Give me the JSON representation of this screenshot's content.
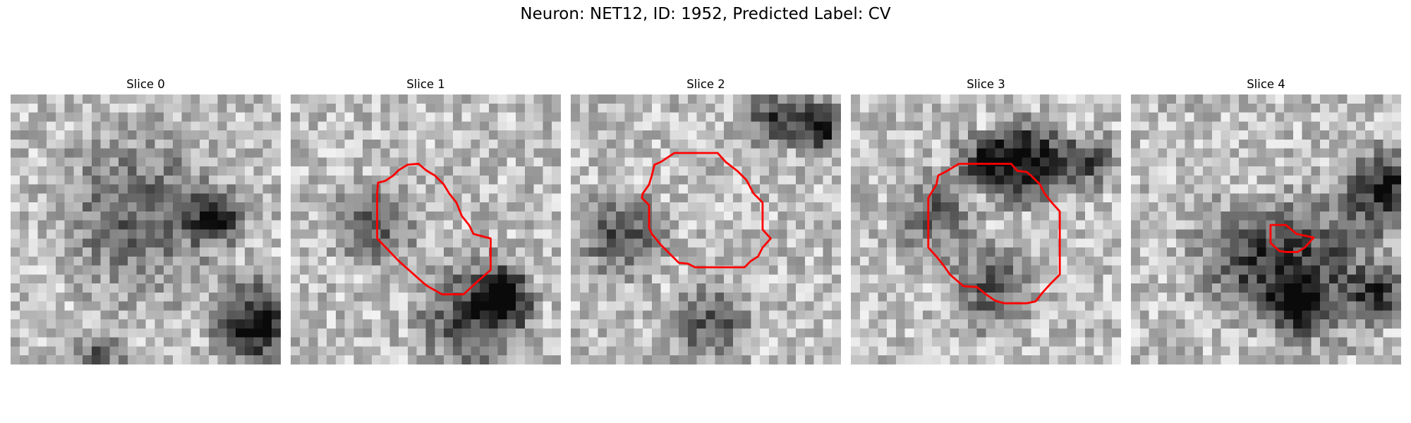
{
  "figure": {
    "title": "Neuron: NET12, ID: 1952, Predicted Label: CV"
  },
  "contour_color": "#ff0000",
  "grid": {
    "cols": 30,
    "rows": 30,
    "colormap": "grayscale"
  },
  "slices": [
    {
      "title": "Slice 0",
      "seed": 11,
      "dark_spots": [
        {
          "c": 14,
          "r": 13,
          "rad": 6,
          "k": 0.35
        },
        {
          "c": 22,
          "r": 13,
          "rad": 2,
          "k": 0.55
        },
        {
          "c": 27,
          "r": 25,
          "rad": 3,
          "k": 0.7
        },
        {
          "c": 9,
          "r": 29,
          "rad": 2,
          "k": 0.4
        }
      ],
      "contour": []
    },
    {
      "title": "Slice 1",
      "seed": 23,
      "dark_spots": [
        {
          "c": 9,
          "r": 14,
          "rad": 3,
          "k": 0.35
        },
        {
          "c": 20,
          "r": 24,
          "rad": 4,
          "k": 0.5
        },
        {
          "c": 23,
          "r": 22,
          "rad": 2,
          "k": 0.6
        }
      ],
      "contour": [
        [
          9.7,
          9.8
        ],
        [
          10.5,
          9.6
        ],
        [
          11.4,
          9.0
        ],
        [
          12.0,
          8.4
        ],
        [
          13.0,
          7.8
        ],
        [
          14.2,
          7.7
        ],
        [
          15.0,
          8.4
        ],
        [
          16.0,
          9.0
        ],
        [
          17.0,
          10.0
        ],
        [
          17.6,
          11.0
        ],
        [
          18.4,
          12.0
        ],
        [
          19.0,
          13.5
        ],
        [
          19.8,
          14.5
        ],
        [
          20.3,
          15.5
        ],
        [
          22.2,
          16.0
        ],
        [
          22.2,
          19.5
        ],
        [
          20.5,
          21.0
        ],
        [
          19.2,
          22.2
        ],
        [
          16.8,
          22.2
        ],
        [
          15.2,
          21.3
        ],
        [
          14.8,
          21.0
        ],
        [
          12.0,
          18.5
        ],
        [
          9.6,
          16.0
        ],
        [
          9.6,
          11.0
        ]
      ]
    },
    {
      "title": "Slice 2",
      "seed": 37,
      "dark_spots": [
        {
          "c": 27,
          "r": 3,
          "rad": 2,
          "k": 0.7
        },
        {
          "c": 22,
          "r": 2,
          "rad": 2,
          "k": 0.5
        },
        {
          "c": 5,
          "r": 15,
          "rad": 3,
          "k": 0.45
        },
        {
          "c": 15,
          "r": 25,
          "rad": 3,
          "k": 0.4
        }
      ],
      "contour": [
        [
          9.3,
          7.8
        ],
        [
          10.0,
          7.5
        ],
        [
          11.5,
          6.5
        ],
        [
          12.5,
          6.5
        ],
        [
          16.3,
          6.5
        ],
        [
          17.2,
          7.5
        ],
        [
          18.5,
          8.5
        ],
        [
          19.5,
          9.5
        ],
        [
          20.3,
          11.0
        ],
        [
          21.3,
          12.0
        ],
        [
          21.3,
          15.0
        ],
        [
          22.2,
          16.0
        ],
        [
          21.3,
          17.0
        ],
        [
          20.8,
          18.0
        ],
        [
          20.0,
          18.5
        ],
        [
          19.3,
          19.2
        ],
        [
          13.8,
          19.2
        ],
        [
          13.0,
          18.8
        ],
        [
          12.0,
          18.7
        ],
        [
          10.0,
          16.7
        ],
        [
          9.0,
          15.5
        ],
        [
          8.7,
          14.8
        ],
        [
          8.7,
          12.3
        ],
        [
          7.9,
          11.5
        ],
        [
          8.0,
          11.0
        ],
        [
          8.7,
          10.0
        ],
        [
          9.0,
          9.0
        ]
      ]
    },
    {
      "title": "Slice 3",
      "seed": 51,
      "dark_spots": [
        {
          "c": 19,
          "r": 7,
          "rad": 3,
          "k": 0.75
        },
        {
          "c": 14,
          "r": 7,
          "rad": 2,
          "k": 0.5
        },
        {
          "c": 26,
          "r": 7,
          "rad": 2,
          "k": 0.45
        },
        {
          "c": 9,
          "r": 13,
          "rad": 3,
          "k": 0.35
        },
        {
          "c": 15,
          "r": 21,
          "rad": 3,
          "k": 0.4
        }
      ],
      "contour": [
        [
          8.6,
          11.5
        ],
        [
          9.5,
          10.0
        ],
        [
          9.7,
          9.0
        ],
        [
          10.5,
          8.6
        ],
        [
          12.0,
          7.7
        ],
        [
          17.8,
          7.7
        ],
        [
          18.5,
          8.5
        ],
        [
          19.5,
          8.6
        ],
        [
          20.0,
          9.0
        ],
        [
          21.0,
          10.0
        ],
        [
          21.5,
          11.0
        ],
        [
          22.3,
          12.0
        ],
        [
          23.2,
          13.0
        ],
        [
          23.2,
          20.0
        ],
        [
          22.2,
          21.0
        ],
        [
          21.3,
          22.0
        ],
        [
          20.5,
          23.0
        ],
        [
          19.5,
          23.2
        ],
        [
          17.0,
          23.2
        ],
        [
          16.0,
          22.9
        ],
        [
          15.0,
          22.2
        ],
        [
          14.0,
          21.4
        ],
        [
          12.5,
          21.3
        ],
        [
          11.0,
          20.0
        ],
        [
          10.3,
          19.0
        ],
        [
          9.5,
          18.0
        ],
        [
          8.6,
          17.0
        ]
      ]
    },
    {
      "title": "Slice 4",
      "seed": 67,
      "dark_spots": [
        {
          "c": 28,
          "r": 10,
          "rad": 3,
          "k": 0.6
        },
        {
          "c": 20,
          "r": 19,
          "rad": 5,
          "k": 0.45
        },
        {
          "c": 12,
          "r": 18,
          "rad": 4,
          "k": 0.35
        },
        {
          "c": 18,
          "r": 23,
          "rad": 2,
          "k": 0.55
        },
        {
          "c": 27,
          "r": 22,
          "rad": 2,
          "k": 0.45
        }
      ],
      "contour": [
        [
          15.5,
          14.5
        ],
        [
          16.5,
          14.5
        ],
        [
          17.2,
          14.5
        ],
        [
          17.8,
          15.0
        ],
        [
          18.4,
          15.5
        ],
        [
          20.3,
          15.9
        ],
        [
          19.3,
          17.0
        ],
        [
          18.5,
          17.5
        ],
        [
          17.2,
          17.5
        ],
        [
          16.5,
          17.4
        ],
        [
          15.5,
          16.5
        ],
        [
          15.5,
          15.5
        ]
      ]
    }
  ]
}
